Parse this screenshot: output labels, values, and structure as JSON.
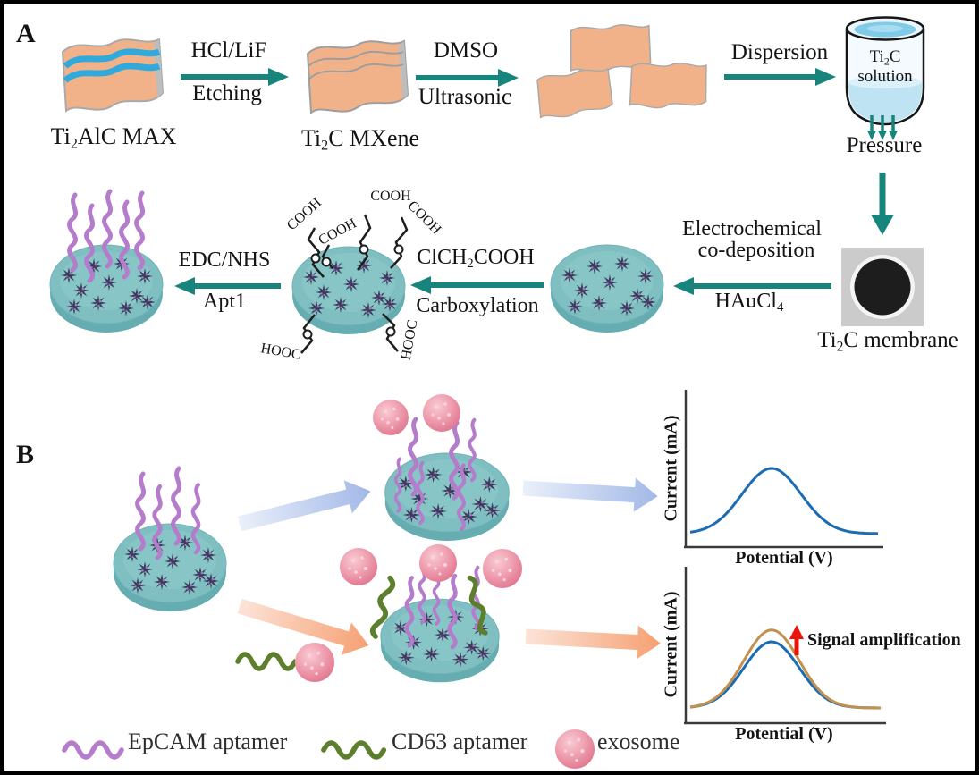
{
  "panel_a": {
    "label": "A",
    "materials": {
      "max": {
        "pre": "Ti",
        "sub": "2",
        "post": "AlC MAX"
      },
      "mxene": {
        "pre": "Ti",
        "sub": "2",
        "post": "C MXene"
      },
      "solution_line1": {
        "pre": "Ti",
        "sub": "2",
        "post": "C"
      },
      "solution_line2": "solution",
      "pressure": "Pressure",
      "membrane": {
        "pre": "Ti",
        "sub": "2",
        "post": "C membrane"
      }
    },
    "steps": {
      "etching": {
        "top": "HCl/LiF",
        "bottom": "Etching"
      },
      "ultrasonic": {
        "top": "DMSO",
        "bottom": "Ultrasonic"
      },
      "dispersion": {
        "top": "Dispersion"
      },
      "deposition": {
        "top_line1": "Electrochemical",
        "top_line2": "co-deposition",
        "bottom": {
          "pre": "HAuCl",
          "sub": "4",
          "post": ""
        }
      },
      "carboxylation": {
        "top": {
          "pre": "ClCH",
          "sub": "2",
          "post": "COOH"
        },
        "bottom": "Carboxylation"
      },
      "conjugation": {
        "top": "EDC/NHS",
        "bottom": "Apt1"
      }
    },
    "cooh_labels": [
      "COOH",
      "COOH",
      "COOH",
      "COOH",
      "HOOC",
      "HOOC"
    ]
  },
  "panel_b": {
    "label": "B",
    "annotation": "Signal amplification",
    "charts": [
      {
        "type": "line",
        "xlabel": "Potential (V)",
        "ylabel": "Current (mA)",
        "series": [
          {
            "name": "blue peak",
            "color": "#1B6CB3",
            "relative_peak": 1.0
          }
        ]
      },
      {
        "type": "line",
        "xlabel": "Potential (V)",
        "ylabel": "Current (mA)",
        "annotation": "Signal amplification",
        "series": [
          {
            "name": "blue peak",
            "color": "#1B6CB3",
            "relative_peak": 1.0
          },
          {
            "name": "amplified tan peak",
            "color": "#C3914E",
            "relative_peak": 1.18
          }
        ]
      }
    ]
  },
  "legend": {
    "items": [
      {
        "label": "EpCAM aptamer",
        "swatch": "purple-squiggle",
        "color": "#B47CCB"
      },
      {
        "label": "CD63 aptamer",
        "swatch": "green-squiggle",
        "color": "#5C7F2D"
      },
      {
        "label": "exosome",
        "swatch": "pink-sphere",
        "color": "#EF9BAC"
      }
    ]
  },
  "colors": {
    "arrow_teal": "#17857B",
    "flake_orange": "#F1B28A",
    "stripe_blue": "#30A9DC",
    "disc_teal": "#7FBFC1",
    "nanoflower": "#3F3B5E",
    "epcam_purple": "#B47CCB",
    "cd63_green": "#5C7F2D",
    "exosome_pink": "#EF9BAC",
    "curve_blue": "#1B6CB3",
    "curve_tan": "#C3914E",
    "amplification_red": "#E9130B"
  }
}
